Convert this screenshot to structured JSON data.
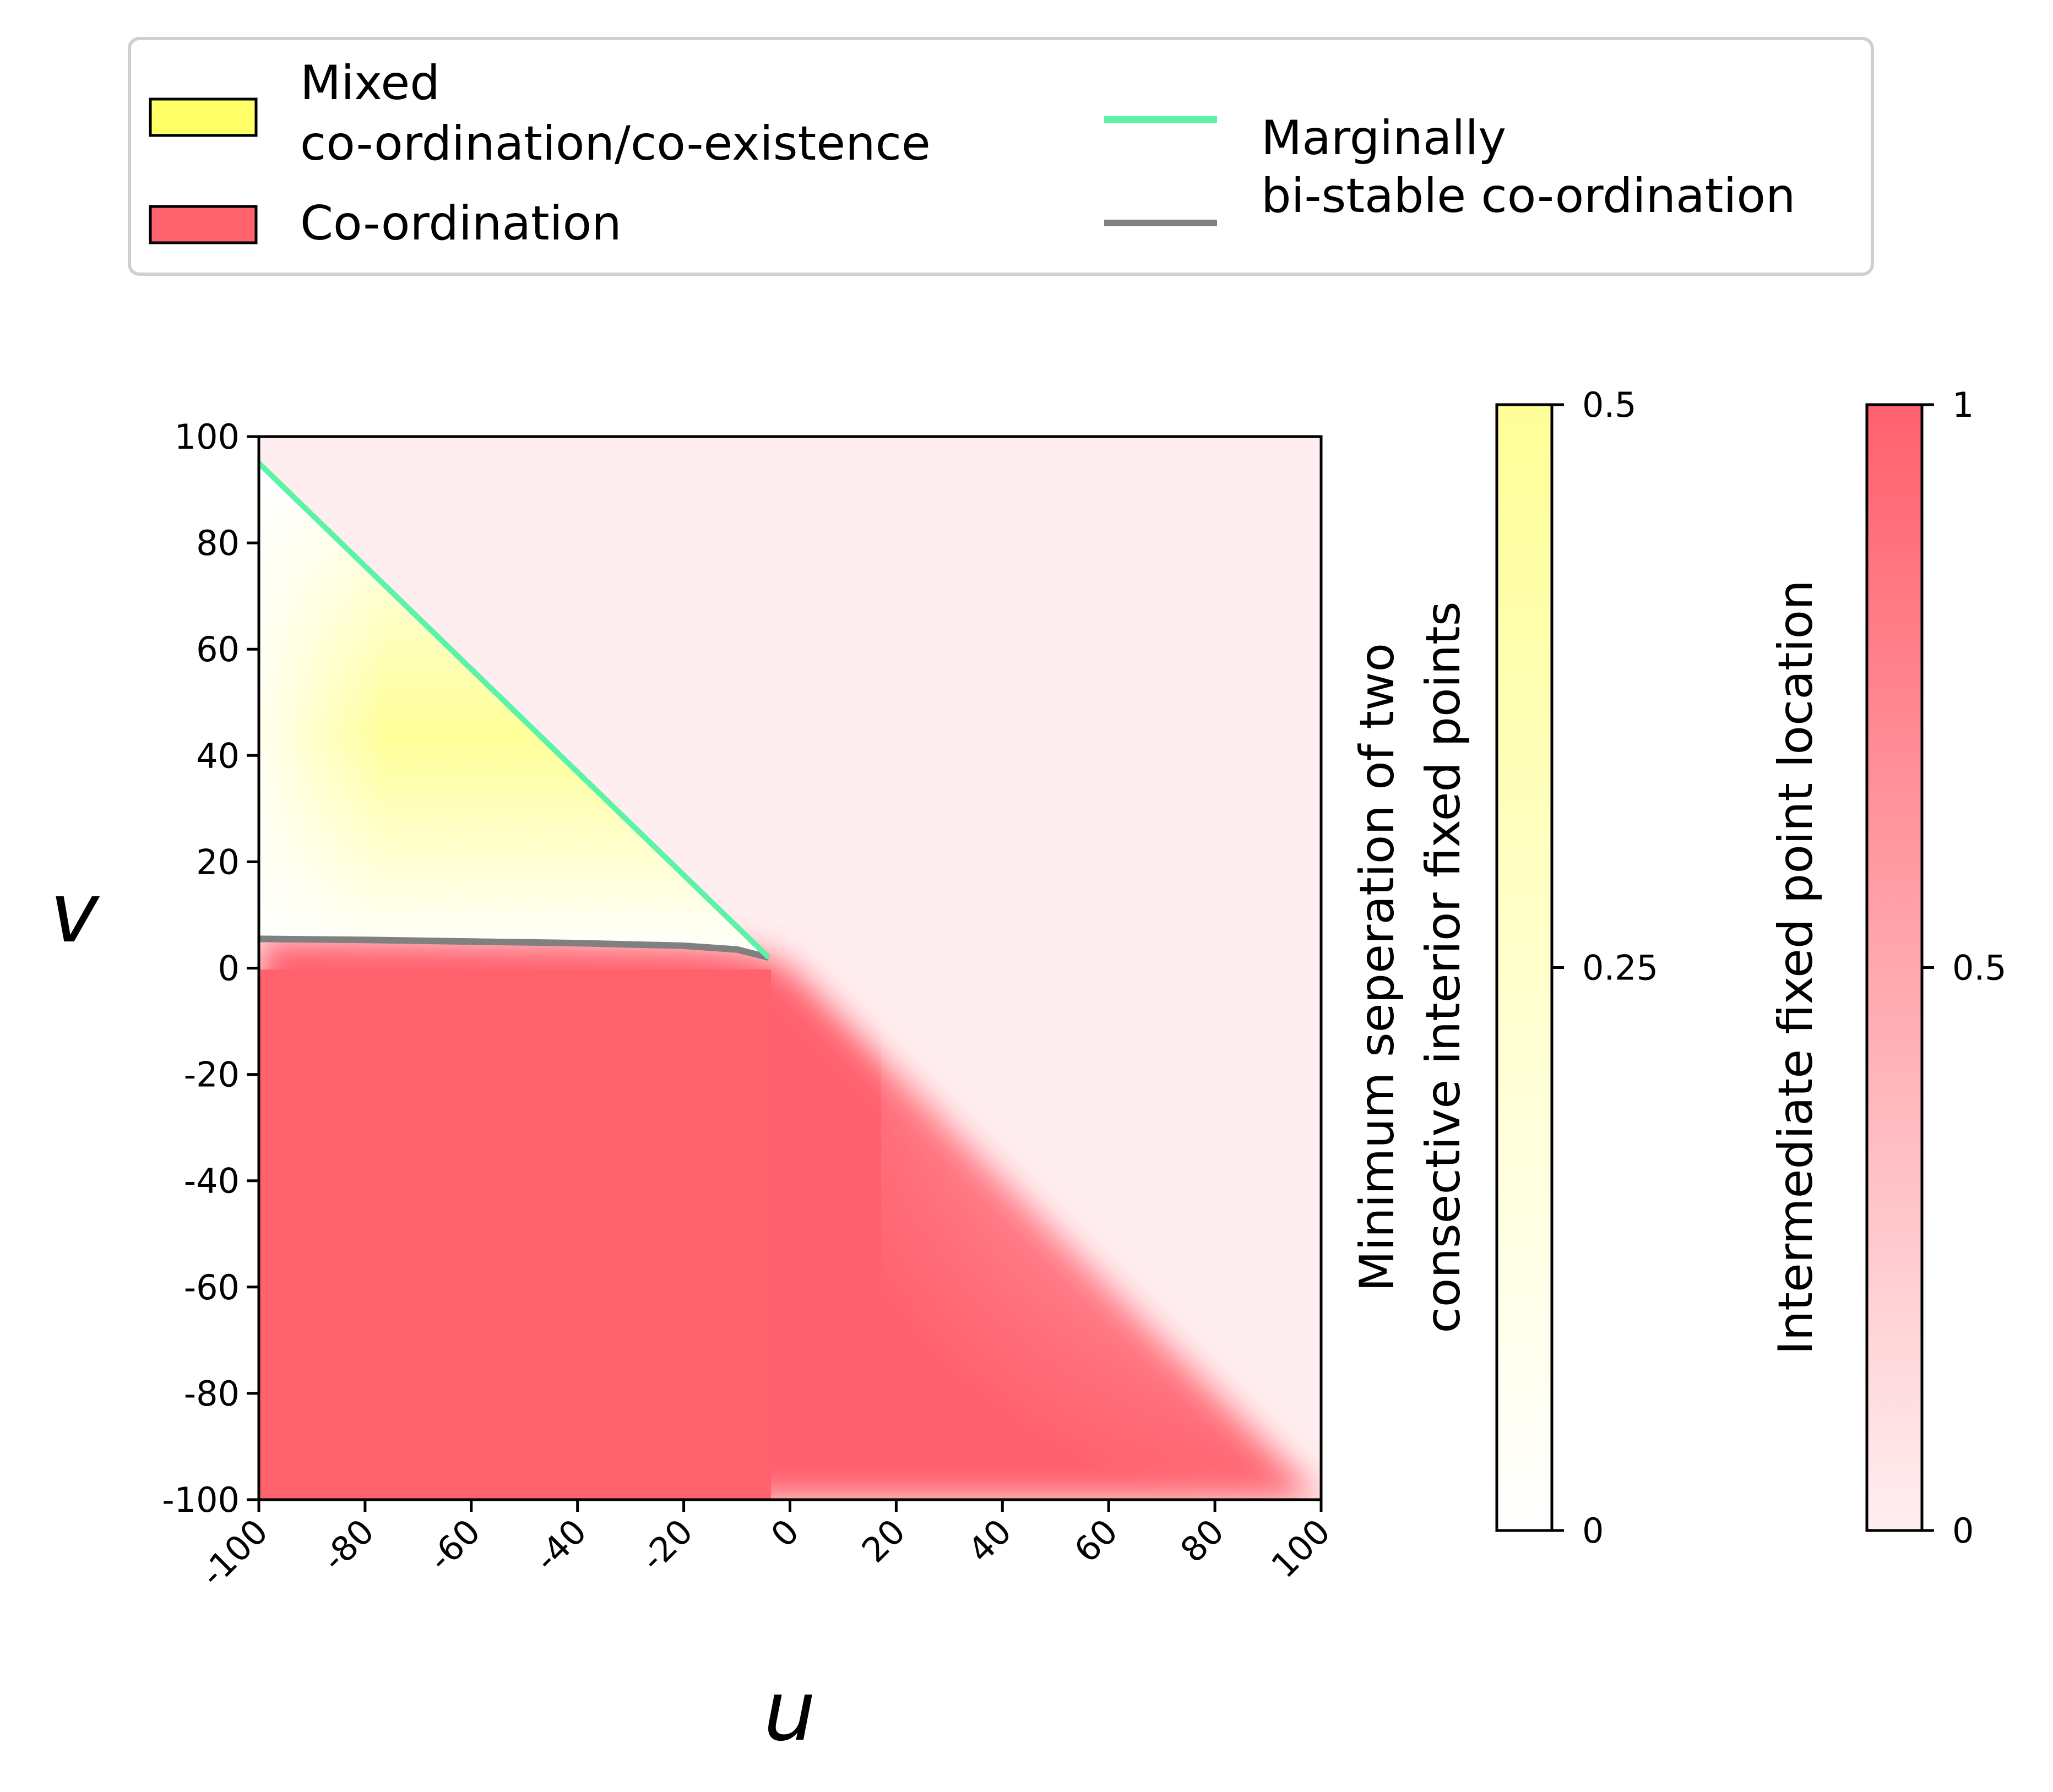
{
  "chart_data": {
    "type": "heatmap",
    "title": "",
    "xlabel": "u",
    "ylabel": "v",
    "xlim": [
      -100,
      100
    ],
    "ylim": [
      -100,
      100
    ],
    "xticks": [
      "-100",
      "-80",
      "-60",
      "-40",
      "-20",
      "0",
      "20",
      "40",
      "60",
      "80",
      "100"
    ],
    "yticks": [
      "100",
      "80",
      "60",
      "40",
      "20",
      "0",
      "-20",
      "-40",
      "-60",
      "-80",
      "-100"
    ],
    "legend": {
      "placement": "top",
      "patches": [
        {
          "label": "Mixed\nco-ordination/co-existence",
          "color": "#ffff66"
        },
        {
          "label": "Co-ordination",
          "color": "#ff616d"
        }
      ],
      "lines": [
        {
          "label": "Marginally\nbi-stable co-ordination",
          "color": "#5cf2a8"
        },
        {
          "label": "",
          "color": "#808080"
        }
      ]
    },
    "series": [
      {
        "name": "Marginally bi-stable co-ordination (green)",
        "color": "#5cf2a8",
        "points": [
          [
            -100,
            95
          ],
          [
            -4,
            2
          ]
        ]
      },
      {
        "name": "Marginally bi-stable co-ordination (grey)",
        "color": "#808080",
        "points": [
          [
            -100,
            5.5
          ],
          [
            -80,
            5.3
          ],
          [
            -60,
            5.0
          ],
          [
            -40,
            4.7
          ],
          [
            -20,
            4.2
          ],
          [
            -10,
            3.5
          ],
          [
            -4,
            2
          ]
        ]
      }
    ],
    "regions": [
      {
        "name": "Mixed co-ordination/co-existence",
        "colormap": "white-yellow",
        "value_range": [
          0,
          0.5
        ]
      },
      {
        "name": "Co-ordination",
        "colormap": "pink-red",
        "value_range": [
          0,
          1
        ]
      }
    ],
    "colorbars": [
      {
        "label": "Minimum seperation of two\nconsective interior fixed points",
        "ticks": [
          "0.5",
          "0.25",
          "0"
        ],
        "color_low": "#ffffff",
        "color_high": "#ffff99"
      },
      {
        "label": "Intermediate fixed point location",
        "ticks": [
          "1",
          "0.5",
          "0"
        ],
        "color_low": "#ffeef0",
        "color_high": "#ff616d"
      }
    ]
  }
}
